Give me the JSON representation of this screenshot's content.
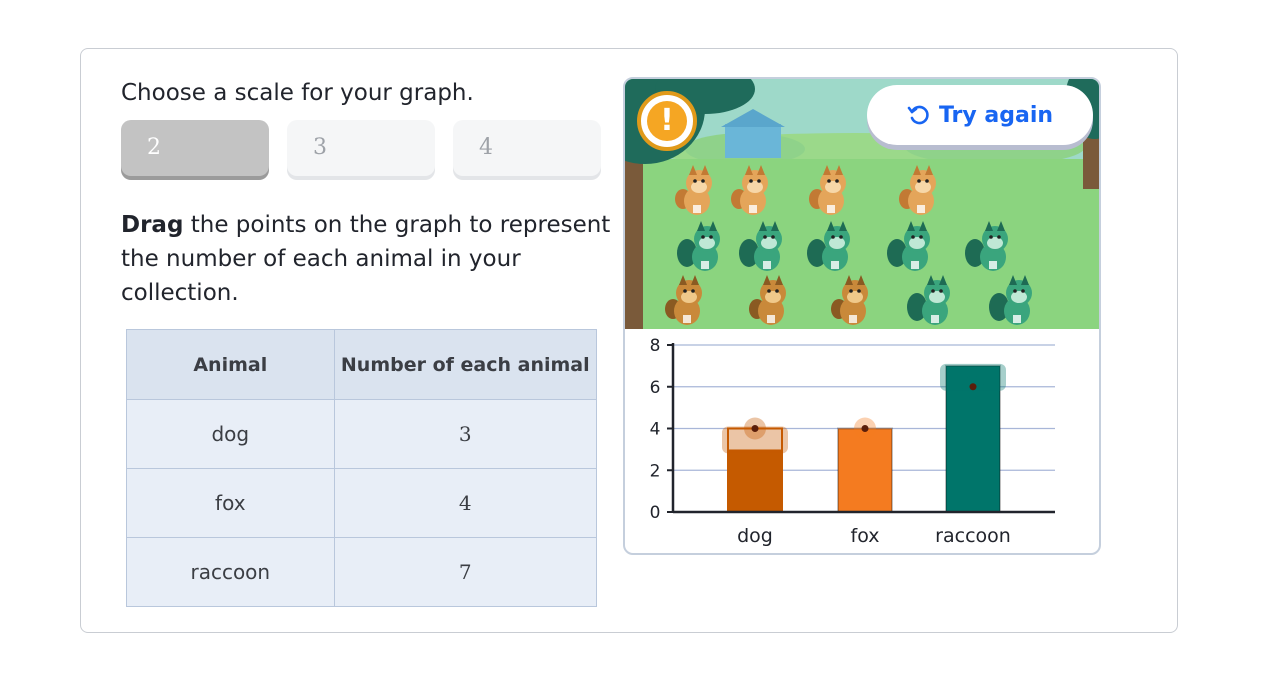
{
  "prompt": "Choose a scale for your graph.",
  "scale_options": [
    {
      "label": "2",
      "selected": true
    },
    {
      "label": "3",
      "selected": false
    },
    {
      "label": "4",
      "selected": false
    }
  ],
  "instruction": {
    "bold": "Drag",
    "rest": " the points on the graph to represent the number of each animal in your collection."
  },
  "table": {
    "headers": [
      "Animal",
      "Number of each animal"
    ],
    "rows": [
      [
        "dog",
        "3"
      ],
      [
        "fox",
        "4"
      ],
      [
        "raccoon",
        "7"
      ]
    ]
  },
  "try_again_label": "Try again",
  "alert_icon": "exclamation-icon",
  "refresh_icon": "undo-arrow-icon",
  "scene": {
    "rows": [
      [
        "fox",
        "fox",
        "fox",
        "fox"
      ],
      [
        "raccoon",
        "raccoon",
        "raccoon",
        "raccoon",
        "raccoon"
      ],
      [
        "dog",
        "dog",
        "dog",
        "raccoon",
        "raccoon"
      ]
    ]
  },
  "chart_data": {
    "type": "bar",
    "categories": [
      "dog",
      "fox",
      "raccoon"
    ],
    "bar_values": [
      3,
      4,
      7
    ],
    "point_values": [
      4,
      4,
      6
    ],
    "yticks": [
      0,
      2,
      4,
      6,
      8
    ],
    "ylim": [
      0,
      8
    ],
    "colors": {
      "dog": "#c55a00",
      "fox": "#f47b20",
      "raccoon": "#00756a"
    },
    "grid": true
  }
}
